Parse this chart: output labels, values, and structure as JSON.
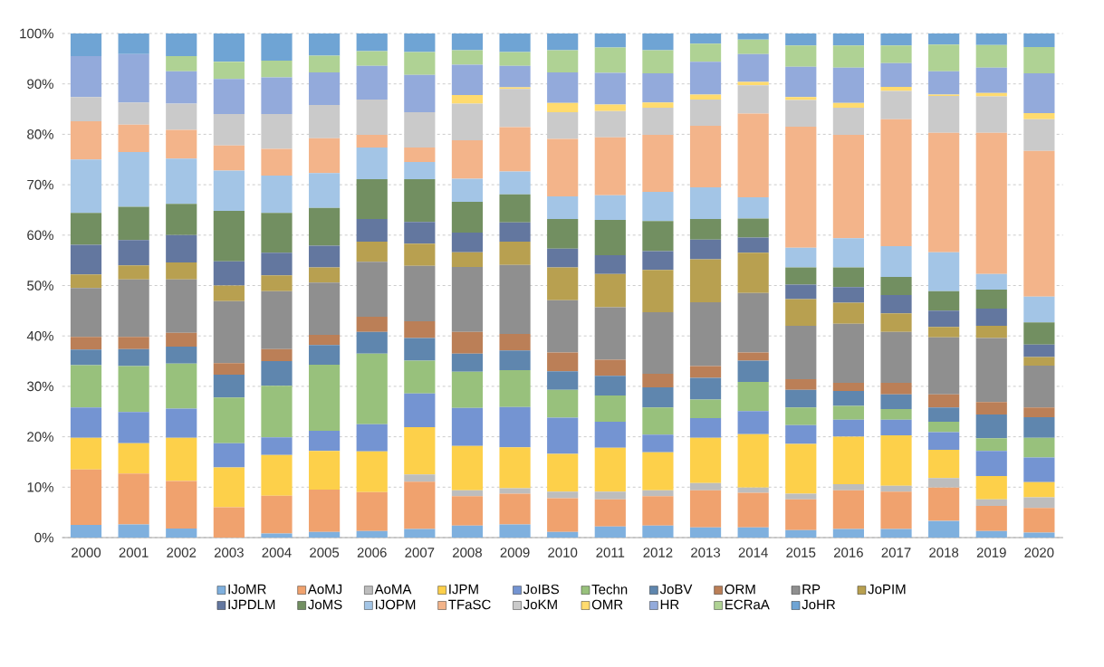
{
  "chart_data": {
    "type": "bar",
    "stacked": true,
    "grid": "y",
    "legend": "bottom",
    "categories": [
      "2000",
      "2001",
      "2002",
      "2003",
      "2004",
      "2005",
      "2006",
      "2007",
      "2008",
      "2009",
      "2010",
      "2011",
      "2012",
      "2013",
      "2014",
      "2015",
      "2016",
      "2017",
      "2018",
      "2019",
      "2020"
    ],
    "ylim": [
      0,
      100
    ],
    "yticks": [
      {
        "value": 0,
        "label": "0%"
      },
      {
        "value": 10,
        "label": "10%"
      },
      {
        "value": 20,
        "label": "20%"
      },
      {
        "value": 30,
        "label": "30%"
      },
      {
        "value": 40,
        "label": "40%"
      },
      {
        "value": 50,
        "label": "50%"
      },
      {
        "value": 60,
        "label": "60%"
      },
      {
        "value": 70,
        "label": "70%"
      },
      {
        "value": 80,
        "label": "80%"
      },
      {
        "value": 90,
        "label": "90%"
      },
      {
        "value": 100,
        "label": "100%"
      }
    ],
    "series": [
      {
        "name": "IJoMR",
        "color": "#7fb0de",
        "values": [
          2.5,
          2.6,
          1.8,
          0,
          0.8,
          1.1,
          1.3,
          1.7,
          2.4,
          2.6,
          1.1,
          2.2,
          2.4,
          2.0,
          2.0,
          1.5,
          1.7,
          1.7,
          3.3,
          1.3,
          1.0
        ]
      },
      {
        "name": "AoMJ",
        "color": "#f0a26e",
        "values": [
          11.0,
          10.1,
          9.4,
          6.0,
          7.5,
          8.4,
          7.7,
          9.4,
          5.8,
          6.1,
          6.7,
          5.4,
          5.8,
          7.4,
          6.9,
          6.1,
          7.7,
          7.4,
          6.6,
          5.0,
          4.9
        ]
      },
      {
        "name": "AoMA",
        "color": "#bdbdbd",
        "values": [
          0,
          0,
          0,
          0,
          0,
          0,
          0,
          1.4,
          1.2,
          1.1,
          1.3,
          1.5,
          1.2,
          1.4,
          1.0,
          1.1,
          1.2,
          1.2,
          1.9,
          1.3,
          2.1
        ]
      },
      {
        "name": "IJPM",
        "color": "#fdd04a",
        "values": [
          6.3,
          6.0,
          8.6,
          7.9,
          8.1,
          7.7,
          8.1,
          9.4,
          8.8,
          8.1,
          7.5,
          8.7,
          7.5,
          9.0,
          10.6,
          9.9,
          9.4,
          10.0,
          5.6,
          4.6,
          3.0
        ]
      },
      {
        "name": "JoIBS",
        "color": "#7494d2",
        "values": [
          6.0,
          6.2,
          5.8,
          4.8,
          3.5,
          4.0,
          5.4,
          6.7,
          7.5,
          8.0,
          7.2,
          5.2,
          3.5,
          3.9,
          4.6,
          3.7,
          3.4,
          3.1,
          3.5,
          5.0,
          4.9
        ]
      },
      {
        "name": "Techn",
        "color": "#98c17c",
        "values": [
          8.4,
          9.1,
          8.9,
          9.1,
          10.2,
          13.1,
          14.0,
          6.5,
          7.2,
          7.3,
          5.5,
          5.2,
          5.4,
          3.7,
          5.8,
          3.5,
          2.7,
          2.1,
          2.1,
          2.5,
          3.9
        ]
      },
      {
        "name": "JoBV",
        "color": "#5f86ae",
        "values": [
          3.1,
          3.4,
          3.4,
          4.5,
          4.9,
          3.9,
          4.3,
          4.5,
          3.6,
          3.9,
          3.7,
          3.9,
          4.0,
          4.3,
          4.2,
          3.5,
          3.0,
          2.9,
          2.8,
          4.7,
          4.1
        ]
      },
      {
        "name": "ORM",
        "color": "#bb7f57",
        "values": [
          2.5,
          2.4,
          2.7,
          2.3,
          2.4,
          2.0,
          3.0,
          3.3,
          4.3,
          3.3,
          3.7,
          3.2,
          2.7,
          2.3,
          1.6,
          2.1,
          1.6,
          2.3,
          2.6,
          2.5,
          1.9
        ]
      },
      {
        "name": "RP",
        "color": "#8f8f8f",
        "values": [
          9.7,
          11.4,
          10.6,
          12.3,
          11.5,
          10.4,
          10.9,
          11.0,
          12.9,
          13.7,
          10.4,
          10.4,
          12.2,
          12.7,
          11.8,
          10.6,
          11.7,
          10.1,
          11.3,
          12.7,
          8.3
        ]
      },
      {
        "name": "JoPIM",
        "color": "#b8a050",
        "values": [
          2.7,
          2.8,
          3.4,
          3.1,
          3.1,
          3.0,
          4.0,
          4.4,
          2.9,
          4.6,
          6.5,
          6.6,
          8.4,
          8.5,
          8.0,
          5.3,
          4.2,
          3.7,
          2.1,
          2.4,
          1.7
        ]
      },
      {
        "name": "IJPDLM",
        "color": "#63779f",
        "values": [
          5.9,
          5.0,
          5.4,
          4.8,
          4.5,
          4.3,
          4.5,
          4.3,
          3.9,
          3.8,
          3.7,
          3.7,
          3.7,
          3.9,
          3.0,
          2.9,
          3.1,
          3.6,
          3.2,
          3.4,
          2.5
        ]
      },
      {
        "name": "JoMS",
        "color": "#728f61",
        "values": [
          6.3,
          6.6,
          6.2,
          10.0,
          7.9,
          7.5,
          7.9,
          8.5,
          6.1,
          5.6,
          5.9,
          7.0,
          6.0,
          4.1,
          3.8,
          3.4,
          3.9,
          3.6,
          3.9,
          3.8,
          4.4
        ]
      },
      {
        "name": "IJOPM",
        "color": "#a3c5e6",
        "values": [
          10.6,
          10.9,
          9.0,
          8.0,
          7.4,
          6.9,
          6.3,
          3.4,
          4.6,
          4.5,
          4.5,
          4.9,
          5.8,
          6.3,
          4.2,
          3.9,
          5.8,
          6.1,
          7.7,
          3.1,
          5.1
        ]
      },
      {
        "name": "TFaSC",
        "color": "#f3b48a",
        "values": [
          7.6,
          5.4,
          5.7,
          5.0,
          5.3,
          6.9,
          2.5,
          2.9,
          7.6,
          8.8,
          11.4,
          11.5,
          11.3,
          12.2,
          16.6,
          24.0,
          20.5,
          25.2,
          23.7,
          28.0,
          28.9
        ]
      },
      {
        "name": "JoKM",
        "color": "#cacaca",
        "values": [
          4.8,
          4.4,
          5.2,
          6.2,
          6.9,
          6.6,
          7.0,
          7.0,
          7.3,
          7.6,
          5.3,
          5.2,
          5.4,
          5.2,
          5.6,
          5.3,
          5.4,
          5.6,
          7.3,
          7.2,
          6.3
        ]
      },
      {
        "name": "OMR",
        "color": "#ffdb6e",
        "values": [
          0,
          0,
          0,
          0,
          0,
          0,
          0,
          0,
          1.7,
          0.3,
          1.8,
          1.3,
          1.0,
          1.0,
          0.7,
          0.6,
          0.9,
          0.8,
          0.3,
          0.7,
          1.2
        ]
      },
      {
        "name": "HR",
        "color": "#93aadb",
        "values": [
          8.1,
          9.6,
          6.4,
          7.0,
          7.3,
          6.5,
          6.7,
          7.4,
          6.0,
          4.3,
          6.1,
          6.3,
          5.8,
          6.5,
          5.5,
          6.0,
          7.0,
          4.7,
          4.6,
          5.0,
          7.9
        ]
      },
      {
        "name": "ECRaA",
        "color": "#afd294",
        "values": [
          0,
          0,
          3.0,
          3.4,
          3.3,
          3.3,
          2.9,
          4.5,
          2.9,
          2.7,
          4.4,
          5.0,
          4.6,
          3.6,
          2.9,
          4.2,
          4.4,
          3.5,
          5.3,
          4.5,
          5.2
        ]
      },
      {
        "name": "JoHR",
        "color": "#6fa4d4",
        "values": [
          4.5,
          4.1,
          4.5,
          5.6,
          5.4,
          4.4,
          3.5,
          3.7,
          3.3,
          3.7,
          3.3,
          2.8,
          3.3,
          2.0,
          1.2,
          2.4,
          2.4,
          2.4,
          2.2,
          2.3,
          2.7
        ]
      }
    ]
  }
}
